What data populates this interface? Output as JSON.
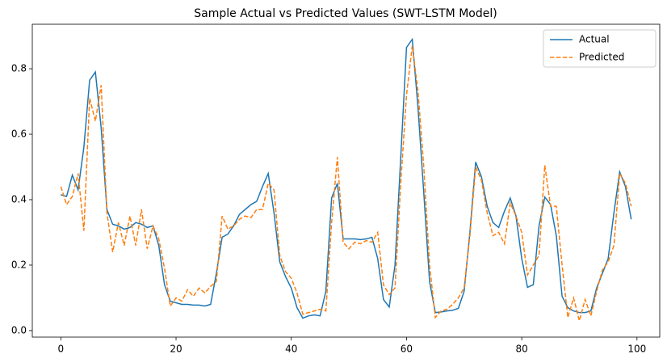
{
  "chart_data": {
    "type": "line",
    "title": "Sample Actual vs Predicted Values (SWT-LSTM Model)",
    "x": [
      0,
      1,
      2,
      3,
      4,
      5,
      6,
      7,
      8,
      9,
      10,
      11,
      12,
      13,
      14,
      15,
      16,
      17,
      18,
      19,
      20,
      21,
      22,
      23,
      24,
      25,
      26,
      27,
      28,
      29,
      30,
      31,
      32,
      33,
      34,
      35,
      36,
      37,
      38,
      39,
      40,
      41,
      42,
      43,
      44,
      45,
      46,
      47,
      48,
      49,
      50,
      51,
      52,
      53,
      54,
      55,
      56,
      57,
      58,
      59,
      60,
      61,
      62,
      63,
      64,
      65,
      66,
      67,
      68,
      69,
      70,
      71,
      72,
      73,
      74,
      75,
      76,
      77,
      78,
      79,
      80,
      81,
      82,
      83,
      84,
      85,
      86,
      87,
      88,
      89,
      90,
      91,
      92,
      93,
      94,
      95,
      96,
      97,
      98,
      99
    ],
    "series": [
      {
        "name": "Actual",
        "color": "#1f77b4",
        "linestyle": "solid",
        "values": [
          0.415,
          0.41,
          0.475,
          0.43,
          0.56,
          0.765,
          0.79,
          0.62,
          0.37,
          0.325,
          0.32,
          0.31,
          0.315,
          0.33,
          0.325,
          0.315,
          0.32,
          0.26,
          0.14,
          0.09,
          0.085,
          0.08,
          0.08,
          0.078,
          0.078,
          0.075,
          0.08,
          0.175,
          0.285,
          0.295,
          0.32,
          0.355,
          0.37,
          0.385,
          0.395,
          0.44,
          0.48,
          0.36,
          0.21,
          0.165,
          0.13,
          0.07,
          0.038,
          0.045,
          0.048,
          0.045,
          0.12,
          0.405,
          0.45,
          0.28,
          0.28,
          0.28,
          0.278,
          0.28,
          0.285,
          0.22,
          0.095,
          0.072,
          0.2,
          0.53,
          0.865,
          0.89,
          0.68,
          0.42,
          0.15,
          0.055,
          0.057,
          0.06,
          0.062,
          0.068,
          0.12,
          0.3,
          0.515,
          0.47,
          0.38,
          0.33,
          0.315,
          0.365,
          0.405,
          0.35,
          0.22,
          0.132,
          0.14,
          0.32,
          0.408,
          0.385,
          0.29,
          0.105,
          0.07,
          0.06,
          0.055,
          0.055,
          0.06,
          0.13,
          0.175,
          0.22,
          0.36,
          0.485,
          0.44,
          0.34
        ]
      },
      {
        "name": "Predicted",
        "color": "#ff7f0e",
        "linestyle": "dashed",
        "values": [
          0.44,
          0.385,
          0.41,
          0.48,
          0.305,
          0.71,
          0.64,
          0.75,
          0.36,
          0.24,
          0.33,
          0.26,
          0.35,
          0.26,
          0.37,
          0.25,
          0.32,
          0.28,
          0.19,
          0.075,
          0.1,
          0.09,
          0.125,
          0.105,
          0.13,
          0.115,
          0.135,
          0.15,
          0.35,
          0.31,
          0.32,
          0.34,
          0.35,
          0.345,
          0.37,
          0.37,
          0.45,
          0.43,
          0.23,
          0.18,
          0.16,
          0.115,
          0.05,
          0.055,
          0.06,
          0.065,
          0.06,
          0.33,
          0.53,
          0.27,
          0.25,
          0.27,
          0.265,
          0.275,
          0.27,
          0.3,
          0.14,
          0.11,
          0.13,
          0.45,
          0.72,
          0.87,
          0.73,
          0.5,
          0.2,
          0.04,
          0.06,
          0.065,
          0.08,
          0.1,
          0.13,
          0.29,
          0.5,
          0.46,
          0.36,
          0.29,
          0.3,
          0.265,
          0.39,
          0.35,
          0.3,
          0.17,
          0.2,
          0.23,
          0.505,
          0.38,
          0.38,
          0.2,
          0.04,
          0.1,
          0.03,
          0.095,
          0.045,
          0.12,
          0.185,
          0.21,
          0.26,
          0.48,
          0.45,
          0.38
        ]
      }
    ],
    "xlim": [
      -4.95,
      103.95
    ],
    "xticks": [
      0,
      20,
      40,
      60,
      80,
      100
    ],
    "ylim": [
      -0.02,
      0.936
    ],
    "yticks": [
      {
        "value": 0,
        "label": "0.0"
      },
      0.2,
      0.4,
      0.6,
      0.8
    ],
    "grid": false,
    "legend": "upper right"
  }
}
